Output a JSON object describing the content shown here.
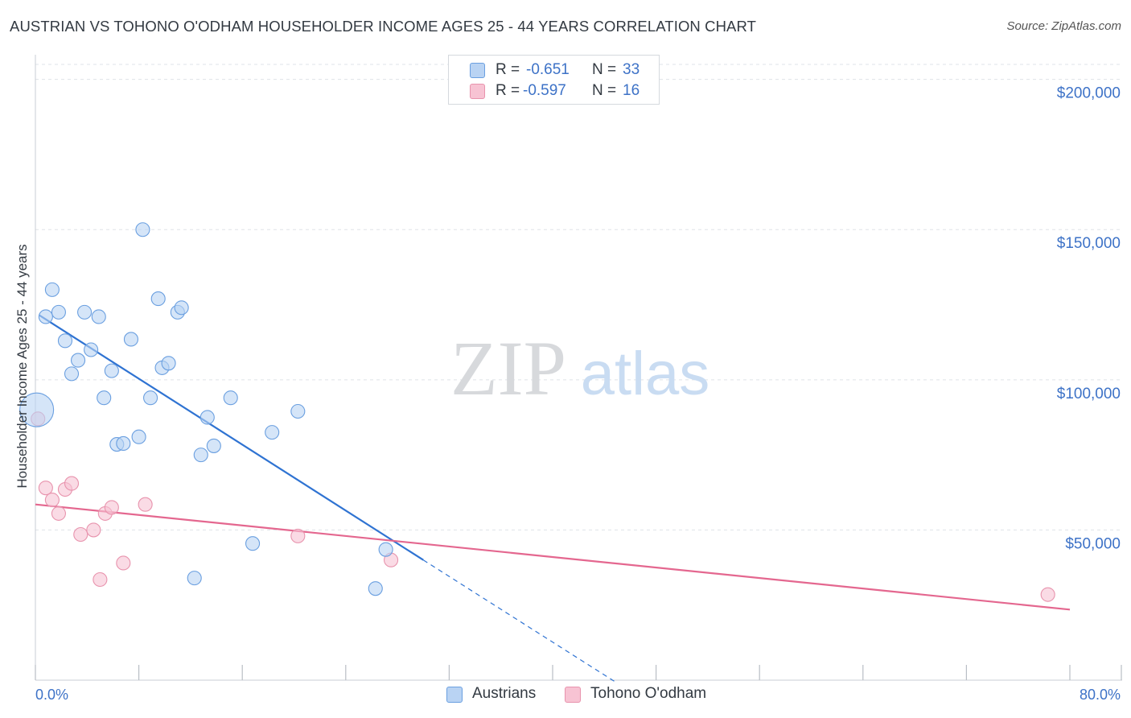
{
  "header": {
    "title": "AUSTRIAN VS TOHONO O'ODHAM HOUSEHOLDER INCOME AGES 25 - 44 YEARS CORRELATION CHART",
    "source": "Source: ZipAtlas.com"
  },
  "watermark": {
    "zip": "ZIP",
    "atlas": "atlas"
  },
  "colors": {
    "austrians_fill": "#b9d3f3",
    "austrians_stroke": "#6a9fe0",
    "austrians_line": "#2f73d2",
    "tohono_fill": "#f7c3d3",
    "tohono_stroke": "#e893ad",
    "tohono_line": "#e4678f",
    "axis_text": "#3d72c7",
    "grid": "#dfe3e8"
  },
  "legend": {
    "rows": [
      {
        "r_label": "R =",
        "r_value": "-0.651",
        "n_label": "N =",
        "n_value": "33"
      },
      {
        "r_label": "R =",
        "r_value": "-0.597",
        "n_label": "N =",
        "n_value": "16"
      }
    ]
  },
  "chart_data": {
    "type": "scatter",
    "title": "AUSTRIAN VS TOHONO O'ODHAM HOUSEHOLDER INCOME AGES 25 - 44 YEARS CORRELATION CHART",
    "xlabel": "",
    "ylabel": "Householder Income Ages 25 - 44 years",
    "xlim": [
      0,
      80
    ],
    "ylim": [
      0,
      205000
    ],
    "y_ticks": [
      {
        "value": 50000,
        "label": "$50,000"
      },
      {
        "value": 100000,
        "label": "$100,000"
      },
      {
        "value": 150000,
        "label": "$150,000"
      },
      {
        "value": 200000,
        "label": "$200,000"
      }
    ],
    "x_tick_labels": [
      {
        "value": 0,
        "label": "0.0%"
      },
      {
        "value": 80,
        "label": "80.0%"
      }
    ],
    "x_minor_ticks": [
      0,
      8,
      16,
      24,
      32,
      40,
      48,
      56,
      64,
      72,
      80
    ],
    "grid": true,
    "legend_position": "top-center",
    "series": [
      {
        "name": "Austrians",
        "r": -0.651,
        "n": 33,
        "points": [
          {
            "x": 0.1,
            "y": 90000,
            "big": true
          },
          {
            "x": 0.8,
            "y": 121000
          },
          {
            "x": 1.3,
            "y": 130000
          },
          {
            "x": 1.8,
            "y": 122500
          },
          {
            "x": 2.3,
            "y": 113000
          },
          {
            "x": 2.8,
            "y": 102000
          },
          {
            "x": 3.3,
            "y": 106500
          },
          {
            "x": 3.8,
            "y": 122500
          },
          {
            "x": 4.3,
            "y": 110000
          },
          {
            "x": 4.9,
            "y": 121000
          },
          {
            "x": 5.3,
            "y": 94000
          },
          {
            "x": 5.9,
            "y": 103000
          },
          {
            "x": 6.3,
            "y": 78500
          },
          {
            "x": 6.8,
            "y": 78800
          },
          {
            "x": 7.4,
            "y": 113500
          },
          {
            "x": 8.0,
            "y": 81000
          },
          {
            "x": 8.3,
            "y": 150000
          },
          {
            "x": 8.9,
            "y": 94000
          },
          {
            "x": 9.5,
            "y": 127000
          },
          {
            "x": 9.8,
            "y": 104000
          },
          {
            "x": 10.3,
            "y": 105500
          },
          {
            "x": 11.0,
            "y": 122500
          },
          {
            "x": 11.3,
            "y": 124000
          },
          {
            "x": 12.3,
            "y": 34000
          },
          {
            "x": 12.8,
            "y": 75000
          },
          {
            "x": 13.3,
            "y": 87500
          },
          {
            "x": 13.8,
            "y": 78000
          },
          {
            "x": 15.1,
            "y": 94000
          },
          {
            "x": 16.8,
            "y": 45500
          },
          {
            "x": 18.3,
            "y": 82500
          },
          {
            "x": 20.3,
            "y": 89500
          },
          {
            "x": 26.3,
            "y": 30500
          },
          {
            "x": 27.1,
            "y": 43500
          }
        ],
        "trend": {
          "x1": 0.3,
          "y1": 121500,
          "x2": 30.0,
          "y2": 40000,
          "dash_to_x": 45.0,
          "dash_to_y": -1000
        }
      },
      {
        "name": "Tohono O'odham",
        "r": -0.597,
        "n": 16,
        "points": [
          {
            "x": 0.2,
            "y": 87000
          },
          {
            "x": 0.8,
            "y": 64000
          },
          {
            "x": 1.3,
            "y": 60000
          },
          {
            "x": 1.8,
            "y": 55500
          },
          {
            "x": 2.3,
            "y": 63500
          },
          {
            "x": 2.8,
            "y": 65500
          },
          {
            "x": 3.5,
            "y": 48500
          },
          {
            "x": 4.5,
            "y": 50000
          },
          {
            "x": 5.0,
            "y": 33500
          },
          {
            "x": 5.4,
            "y": 55500
          },
          {
            "x": 5.9,
            "y": 57500
          },
          {
            "x": 6.8,
            "y": 39000
          },
          {
            "x": 8.5,
            "y": 58500
          },
          {
            "x": 20.3,
            "y": 48000
          },
          {
            "x": 27.5,
            "y": 40000
          },
          {
            "x": 78.3,
            "y": 28500
          }
        ],
        "trend": {
          "x1": 0.0,
          "y1": 58500,
          "x2": 80.0,
          "y2": 23500
        }
      }
    ]
  },
  "bottom_legend": {
    "austrians": "Austrians",
    "tohono": "Tohono O'odham"
  }
}
